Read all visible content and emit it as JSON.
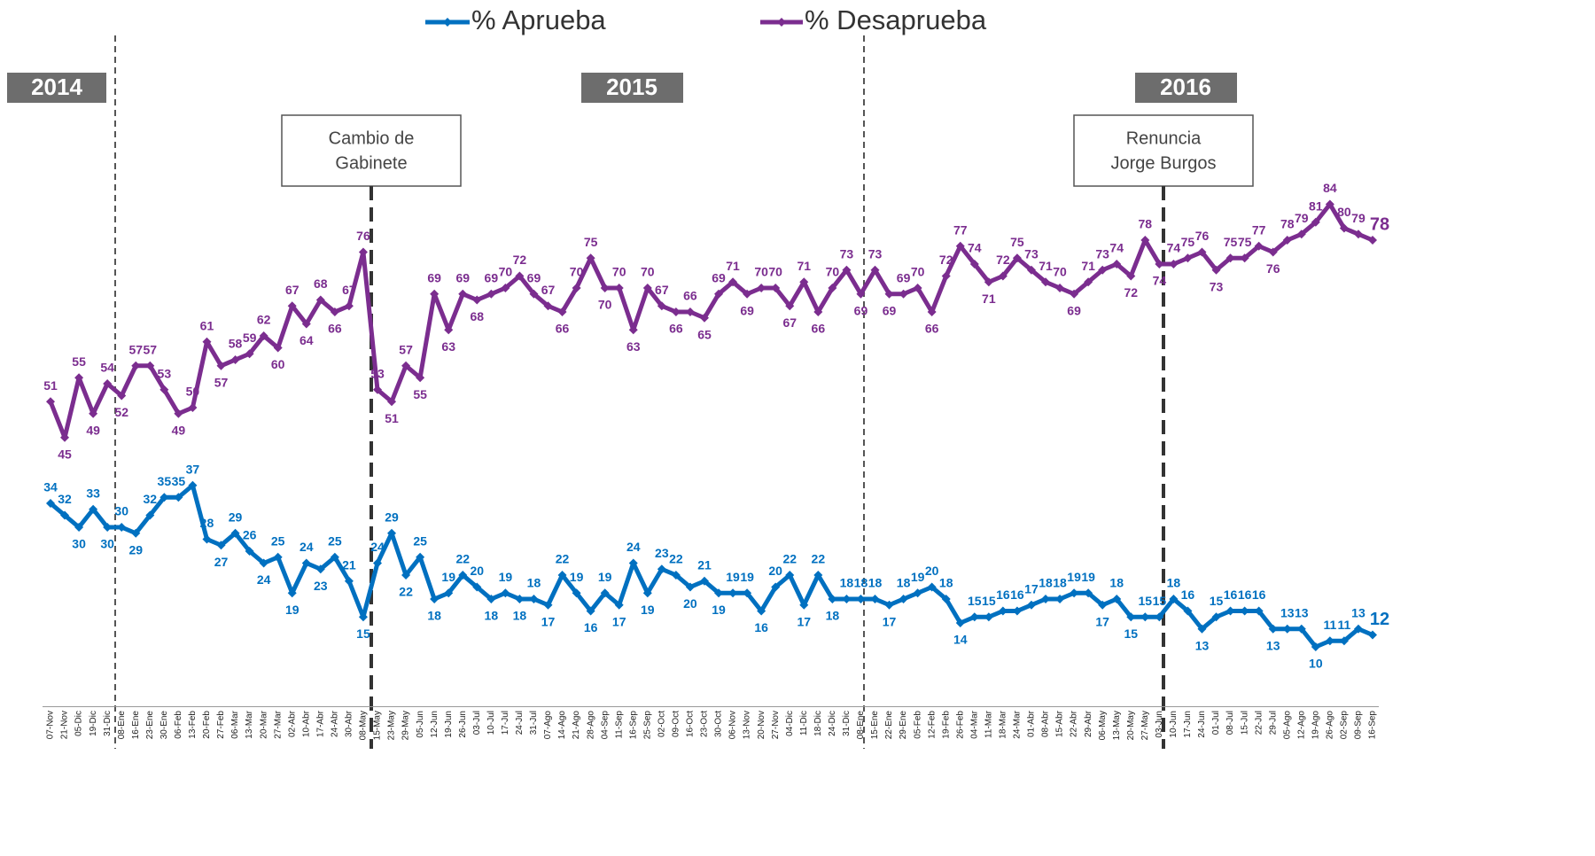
{
  "chart_data": {
    "type": "line",
    "categories": [
      "07-Nov",
      "21-Nov",
      "05-Dic",
      "19-Dic",
      "31-Dic",
      "08-Ene",
      "16-Ene",
      "23-Ene",
      "30-Ene",
      "06-Feb",
      "13-Feb",
      "20-Feb",
      "27-Feb",
      "06-Mar",
      "13-Mar",
      "20-Mar",
      "27-Mar",
      "02-Abr",
      "10-Abr",
      "17-Abr",
      "24-Abr",
      "30-Abr",
      "08-May",
      "15-May",
      "23-May",
      "29-May",
      "05-Jun",
      "12-Jun",
      "19-Jun",
      "26-Jun",
      "03-Jul",
      "10-Jul",
      "17-Jul",
      "24-Jul",
      "31-Jul",
      "07-Ago",
      "14-Ago",
      "21-Ago",
      "28-Ago",
      "04-Sep",
      "11-Sep",
      "16-Sep",
      "25-Sep",
      "02-Oct",
      "09-Oct",
      "16-Oct",
      "23-Oct",
      "30-Oct",
      "06-Nov",
      "13-Nov",
      "20-Nov",
      "27-Nov",
      "04-Dic",
      "11-Dic",
      "18-Dic",
      "24-Dic",
      "31-Dic",
      "08-Ene",
      "15-Ene",
      "22-Ene",
      "29-Ene",
      "05-Feb",
      "12-Feb",
      "19-Feb",
      "26-Feb",
      "04-Mar",
      "11-Mar",
      "18-Mar",
      "24-Mar",
      "01-Abr",
      "08-Abr",
      "15-Abr",
      "22-Abr",
      "29-Abr",
      "06-May",
      "13-May",
      "20-May",
      "27-May",
      "03-Jun",
      "10-Jun",
      "17-Jun",
      "24-Jun",
      "01-Jul",
      "08-Jul",
      "15-Jul",
      "22-Jul",
      "29-Jul",
      "05-Ago",
      "12-Ago",
      "19-Ago",
      "26-Ago",
      "02-Sep",
      "09-Sep",
      "16-Sep"
    ],
    "series": [
      {
        "name": "% Aprueba",
        "color": "#0070c0",
        "values": [
          34,
          32,
          30,
          33,
          30,
          30,
          29,
          32,
          35,
          35,
          37,
          28,
          27,
          29,
          26,
          24,
          25,
          19,
          24,
          23,
          25,
          21,
          15,
          24,
          29,
          22,
          25,
          18,
          19,
          22,
          20,
          18,
          19,
          18,
          18,
          17,
          22,
          19,
          16,
          19,
          17,
          24,
          19,
          23,
          22,
          20,
          21,
          19,
          19,
          19,
          16,
          20,
          22,
          17,
          22,
          18,
          18,
          18,
          18,
          17,
          18,
          19,
          20,
          18,
          14,
          15,
          15,
          16,
          16,
          17,
          18,
          18,
          19,
          19,
          17,
          18,
          15,
          15,
          15,
          18,
          16,
          13,
          15,
          16,
          16,
          16,
          13,
          13,
          13,
          10,
          11,
          11,
          13,
          12
        ]
      },
      {
        "name": "% Desaprueba",
        "color": "#7b2d8f",
        "values": [
          51,
          45,
          55,
          49,
          54,
          52,
          57,
          57,
          53,
          49,
          50,
          61,
          57,
          58,
          59,
          62,
          60,
          67,
          64,
          68,
          66,
          67,
          76,
          53,
          51,
          57,
          55,
          69,
          63,
          69,
          68,
          69,
          70,
          72,
          69,
          67,
          66,
          70,
          75,
          70,
          70,
          63,
          70,
          67,
          66,
          66,
          65,
          69,
          71,
          69,
          70,
          70,
          67,
          71,
          66,
          70,
          73,
          69,
          73,
          69,
          69,
          70,
          66,
          72,
          77,
          74,
          71,
          72,
          75,
          73,
          71,
          70,
          69,
          71,
          73,
          74,
          72,
          78,
          74,
          74,
          75,
          76,
          73,
          75,
          75,
          77,
          76,
          78,
          79,
          81,
          84,
          80,
          79,
          78
        ]
      }
    ],
    "ylim": [
      0,
      100
    ],
    "years": [
      "2014",
      "2015",
      "2016"
    ],
    "annotations": [
      [
        "Cambio de",
        "Gabinete"
      ],
      [
        "Renuncia",
        "Jorge Burgos"
      ]
    ]
  }
}
